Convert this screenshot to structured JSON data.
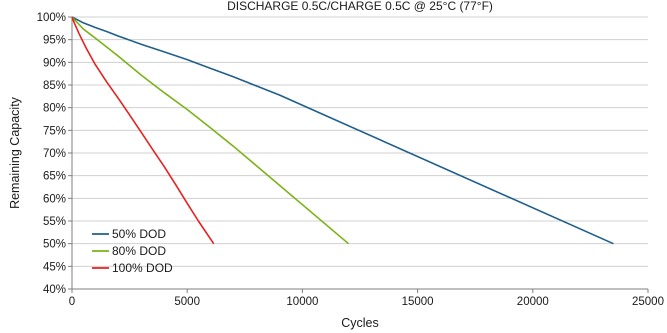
{
  "chart_data": {
    "type": "line",
    "title": "DISCHARGE 0.5C/CHARGE 0.5C @ 25°C (77°F)",
    "xlabel": "Cycles",
    "ylabel": "Remaining Capacity",
    "xlim": [
      0,
      25000
    ],
    "ylim": [
      40,
      100
    ],
    "x_ticks": [
      0,
      5000,
      10000,
      15000,
      20000,
      25000
    ],
    "x_tick_labels": [
      "0",
      "5000",
      "10000",
      "15000",
      "20000",
      "25000"
    ],
    "y_ticks": [
      40,
      45,
      50,
      55,
      60,
      65,
      70,
      75,
      80,
      85,
      90,
      95,
      100
    ],
    "y_tick_labels": [
      "40%",
      "45%",
      "50%",
      "55%",
      "60%",
      "65%",
      "70%",
      "75%",
      "80%",
      "85%",
      "90%",
      "95%",
      "100%"
    ],
    "grid": "horizontal",
    "legend_position": "bottom-left",
    "series": [
      {
        "name": "50% DOD",
        "color": "#1f5f8b",
        "x": [
          0,
          500,
          1000,
          1500,
          2000,
          3000,
          4000,
          5000,
          6000,
          7000,
          8000,
          9000,
          23500
        ],
        "y": [
          100,
          98.7,
          97.7,
          96.8,
          95.8,
          94.0,
          92.3,
          90.6,
          88.7,
          86.8,
          84.8,
          82.8,
          50
        ]
      },
      {
        "name": "80% DOD",
        "color": "#7ab317",
        "x": [
          0,
          500,
          1000,
          2000,
          3000,
          4000,
          5000,
          6000,
          7000,
          12000
        ],
        "y": [
          100,
          97.3,
          95.4,
          91.4,
          87.2,
          83.3,
          79.6,
          75.6,
          71.5,
          50
        ]
      },
      {
        "name": "100% DOD",
        "color": "#e82020",
        "x": [
          0,
          100,
          300,
          600,
          1000,
          1500,
          2000,
          2500,
          3000,
          3500,
          4000,
          4500,
          5000,
          5500,
          6150
        ],
        "y": [
          100,
          98.7,
          96.4,
          93.3,
          89.6,
          85.7,
          82.1,
          78.4,
          74.6,
          70.8,
          67.0,
          63.0,
          58.9,
          54.9,
          50
        ]
      }
    ]
  }
}
